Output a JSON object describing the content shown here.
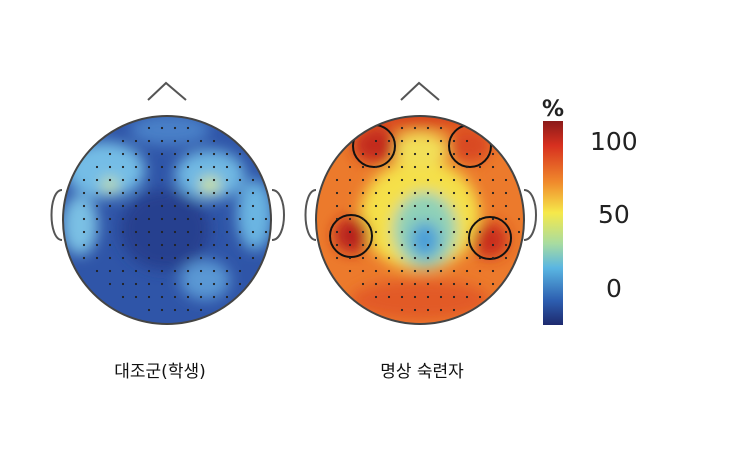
{
  "panels": [
    {
      "label": "대조군(학생)"
    },
    {
      "label": "명상 숙련자"
    }
  ],
  "colorbar": {
    "unit": "%",
    "ticks": [
      "100",
      "50",
      "0"
    ]
  }
}
